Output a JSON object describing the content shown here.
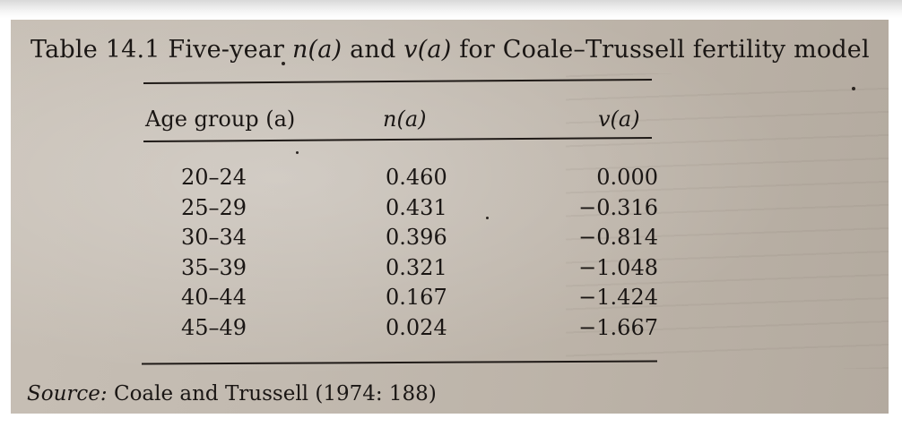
{
  "table": {
    "title_prefix": "Table 14.1 Five-year ",
    "title_na": "n(a)",
    "title_and": " and ",
    "title_va": "v(a)",
    "title_suffix": " for Coale–Trussell fertility model",
    "headers": {
      "age_group": "Age group (a)",
      "n_a": "n(a)",
      "v_a": "v(a)"
    },
    "rows": [
      {
        "age": "20–24",
        "n": "0.460",
        "v": "0.000"
      },
      {
        "age": "25–29",
        "n": "0.431",
        "v": "−0.316"
      },
      {
        "age": "30–34",
        "n": "0.396",
        "v": "−0.814"
      },
      {
        "age": "35–39",
        "n": "0.321",
        "v": "−1.048"
      },
      {
        "age": "40–44",
        "n": "0.167",
        "v": "−1.424"
      },
      {
        "age": "45–49",
        "n": "0.024",
        "v": "−1.667"
      }
    ],
    "source_label": "Source:",
    "source_text": " Coale and Trussell (1974: 188)"
  }
}
